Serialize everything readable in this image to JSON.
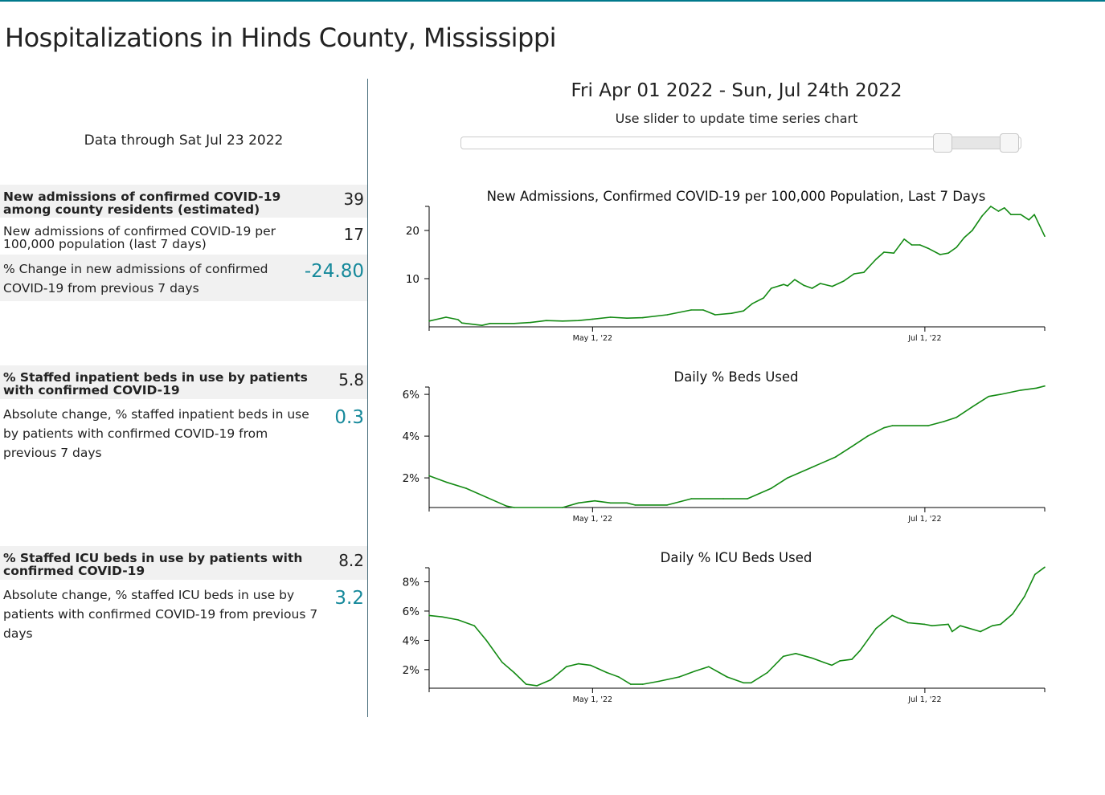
{
  "page_title": "Hospitalizations in Hinds County, Mississippi",
  "data_through": "Data through Sat Jul 23 2022",
  "metrics": [
    {
      "label": "New admissions of confirmed COVID-19 among county residents (estimated)",
      "value": "39"
    },
    {
      "label": "New admissions of confirmed COVID-19 per 100,000 population (last 7 days)",
      "value": "17"
    },
    {
      "label": "% Change in new admissions of confirmed COVID-19 from previous 7 days",
      "value": "-24.80"
    },
    {
      "label": "% Staffed inpatient beds in use by patients with confirmed COVID-19",
      "value": "5.8"
    },
    {
      "label": "Absolute change, % staffed inpatient beds in use by patients with confirmed COVID-19 from previous 7 days",
      "value": "0.3"
    },
    {
      "label": "% Staffed ICU beds in use by patients with confirmed COVID-19",
      "value": "8.2"
    },
    {
      "label": "Absolute change, % staffed ICU beds in use by patients with confirmed COVID-19 from previous 7 days",
      "value": "3.2"
    }
  ],
  "range_title": "Fri Apr 01 2022 - Sun, Jul 24th 2022",
  "slider": {
    "hint": "Use slider to update time series chart",
    "start_fraction": 0.86,
    "end_fraction": 0.98
  },
  "colors": {
    "line": "#138a13",
    "accent": "#16899b",
    "topline": "#00798c"
  },
  "chart_data": [
    {
      "type": "line",
      "title": "New Admissions, Confirmed COVID-19 per 100,000 Population, Last 7 Days",
      "x_unit": "days since Apr 1 2022",
      "xlim": [
        0,
        113
      ],
      "ylim": [
        0,
        25
      ],
      "yticks": [
        10,
        20
      ],
      "y_suffix": "",
      "xticks": [
        {
          "day": 30,
          "label": "May 1, '22"
        },
        {
          "day": 91,
          "label": "Jul 1, '22"
        }
      ],
      "x": [
        0,
        3.1,
        5.3,
        6,
        9.7,
        11.2,
        15.6,
        18.6,
        21.5,
        24.5,
        27.4,
        30,
        33.3,
        36.3,
        39.2,
        43.7,
        48.1,
        50.3,
        52.5,
        55.5,
        57.7,
        59.3,
        61.4,
        62.8,
        65.1,
        65.8,
        67.1,
        68.8,
        70.3,
        71.8,
        74,
        76.1,
        78,
        79.8,
        82,
        83.5,
        85.3,
        87.2,
        88.6,
        90.1,
        91.6,
        93.8,
        95.3,
        96.8,
        98.2,
        99.7,
        101.5,
        103.1,
        104.5,
        105.6,
        106.8,
        108.6,
        110.1,
        111.1,
        113
      ],
      "y": [
        1.2,
        2,
        1.5,
        0.8,
        0.3,
        0.7,
        0.7,
        0.9,
        1.3,
        1.2,
        1.3,
        1.6,
        2,
        1.8,
        1.9,
        2.5,
        3.5,
        3.5,
        2.5,
        2.8,
        3.3,
        4.8,
        6,
        8,
        8.8,
        8.5,
        9.8,
        8.6,
        8,
        9,
        8.4,
        9.5,
        11,
        11.3,
        14,
        15.5,
        15.3,
        18.2,
        17,
        17,
        16.3,
        15,
        15.3,
        16.5,
        18.5,
        20,
        23,
        25,
        24,
        24.7,
        23.3,
        23.3,
        22.2,
        23.3,
        18.8
      ]
    },
    {
      "type": "line",
      "title": "Daily % Beds Used",
      "x_unit": "days since Apr 1 2022",
      "xlim": [
        0,
        113
      ],
      "ylim": [
        0.58,
        6.35
      ],
      "yticks": [
        2,
        4,
        6
      ],
      "y_suffix": "%",
      "xticks": [
        {
          "day": 30,
          "label": "May 1, '22"
        },
        {
          "day": 91,
          "label": "Jul 1, '22"
        }
      ],
      "x": [
        0,
        3.1,
        6.8,
        14.2,
        15.6,
        24.5,
        27.4,
        30.4,
        33.3,
        36.3,
        37.8,
        43.7,
        48.1,
        54,
        58.4,
        62.8,
        65.8,
        70.2,
        74.6,
        77.6,
        80.5,
        83.5,
        85,
        91.6,
        94.5,
        96.8,
        99.7,
        102.7,
        104.9,
        108.6,
        111.5,
        113
      ],
      "y": [
        2.1,
        1.8,
        1.5,
        0.65,
        0.58,
        0.58,
        0.8,
        0.9,
        0.8,
        0.8,
        0.7,
        0.7,
        1,
        1,
        1,
        1.5,
        2,
        2.5,
        3,
        3.5,
        4,
        4.4,
        4.5,
        4.5,
        4.7,
        4.9,
        5.4,
        5.9,
        6,
        6.2,
        6.3,
        6.4
      ]
    },
    {
      "type": "line",
      "title": "Daily % ICU Beds Used",
      "x_unit": "days since Apr 1 2022",
      "xlim": [
        0,
        113
      ],
      "ylim": [
        0.73,
        8.96
      ],
      "yticks": [
        2,
        4,
        6,
        8
      ],
      "y_suffix": "%",
      "xticks": [
        {
          "day": 30,
          "label": "May 1, '22"
        },
        {
          "day": 91,
          "label": "Jul 1, '22"
        }
      ],
      "x": [
        0,
        2.4,
        5.3,
        8.3,
        10.5,
        13.4,
        15.6,
        17.8,
        19.8,
        22.3,
        25.2,
        27.4,
        29.6,
        32.6,
        34.8,
        37,
        39.2,
        42.2,
        45.9,
        48.8,
        51.3,
        54.7,
        57.7,
        59.1,
        62.1,
        65,
        67.3,
        70.2,
        72.4,
        73.9,
        75.4,
        77.6,
        79.1,
        82,
        85,
        87.9,
        90.9,
        92.3,
        95.3,
        96,
        97.5,
        101.2,
        103.4,
        104.9,
        107.1,
        109.3,
        111.2,
        113
      ],
      "y": [
        5.7,
        5.6,
        5.4,
        5,
        4,
        2.5,
        1.8,
        1,
        0.9,
        1.3,
        2.2,
        2.4,
        2.3,
        1.8,
        1.5,
        1,
        1,
        1.2,
        1.5,
        1.9,
        2.2,
        1.5,
        1.1,
        1.1,
        1.8,
        2.9,
        3.1,
        2.8,
        2.5,
        2.3,
        2.6,
        2.7,
        3.3,
        4.8,
        5.7,
        5.2,
        5.1,
        5,
        5.1,
        4.6,
        5,
        4.6,
        5,
        5.1,
        5.8,
        7,
        8.5,
        9
      ]
    }
  ]
}
